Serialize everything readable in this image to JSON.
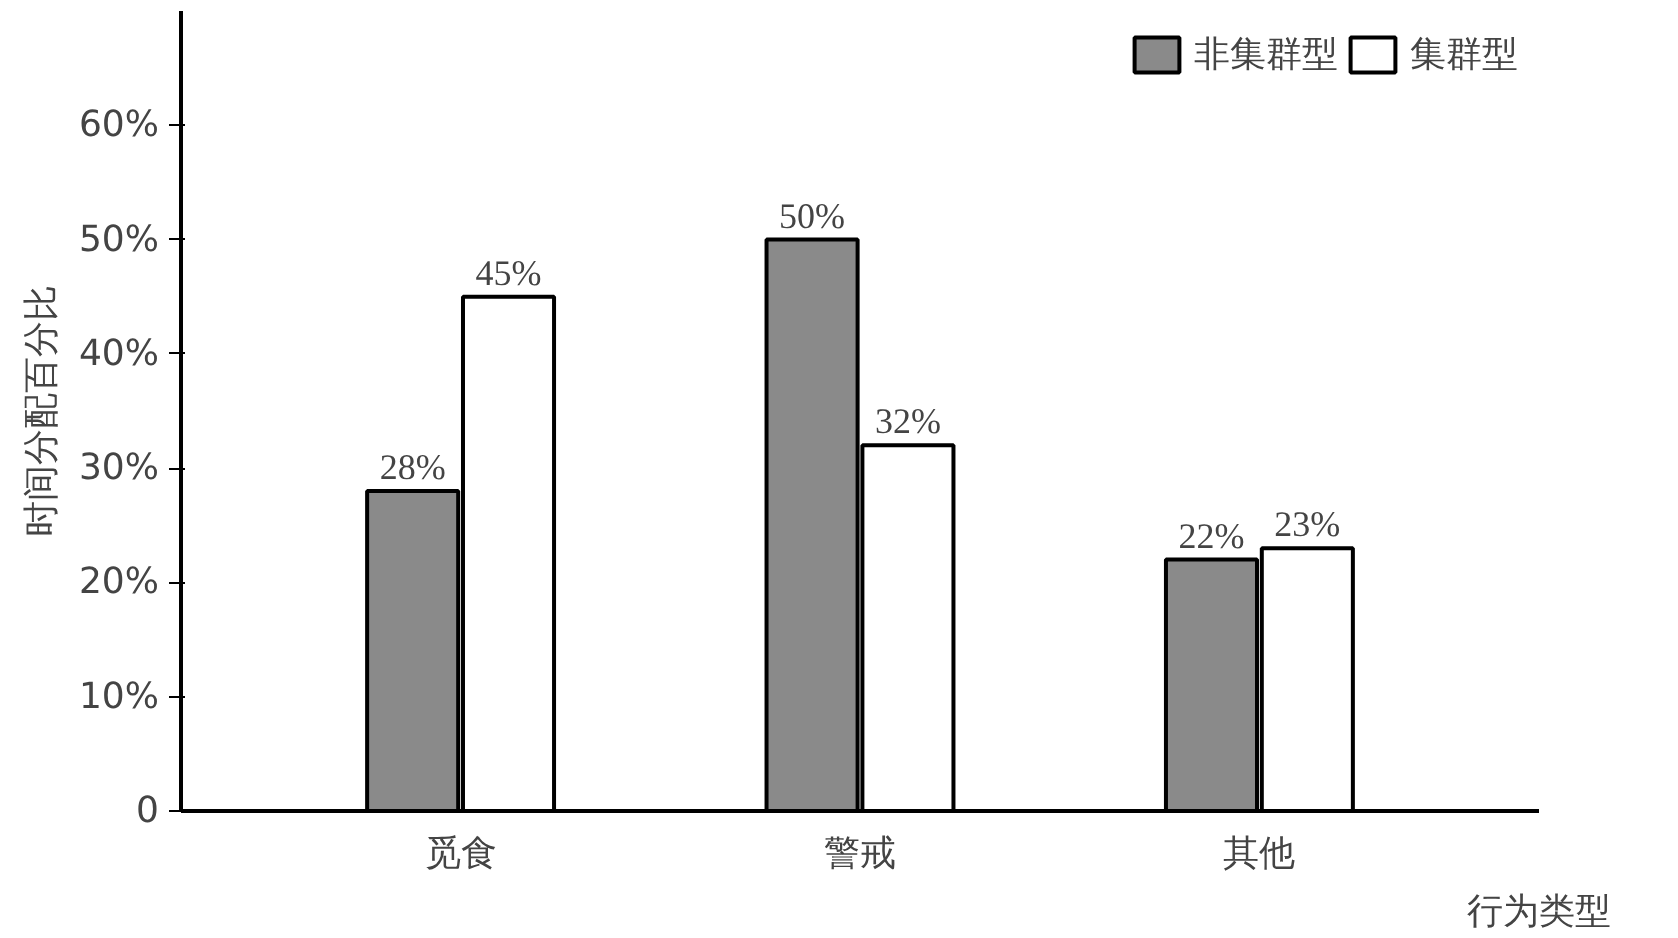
{
  "chart_data": {
    "type": "bar",
    "ylabel": "时间分配百分比",
    "xlabel": "行为类型",
    "categories": [
      "觅食",
      "警戒",
      "其他"
    ],
    "series": [
      {
        "name": "非集群型",
        "color": "#8a8a8a",
        "values": [
          28,
          50,
          22
        ],
        "value_labels": [
          "28%",
          "50%",
          "22%"
        ]
      },
      {
        "name": "集群型",
        "color": "#ffffff",
        "values": [
          45,
          32,
          23
        ],
        "value_labels": [
          "45%",
          "32%",
          "23%"
        ]
      }
    ],
    "ylim": [
      0,
      70
    ],
    "yticks": [
      0,
      {
        "value": 10,
        "label": "10%"
      },
      {
        "value": 20,
        "label": "20%"
      },
      {
        "value": 30,
        "label": "30%"
      },
      {
        "value": 40,
        "label": "40%"
      },
      {
        "value": 50,
        "label": "50%"
      },
      {
        "value": 60,
        "label": "60%"
      }
    ],
    "grid": false,
    "legend": "top right"
  }
}
